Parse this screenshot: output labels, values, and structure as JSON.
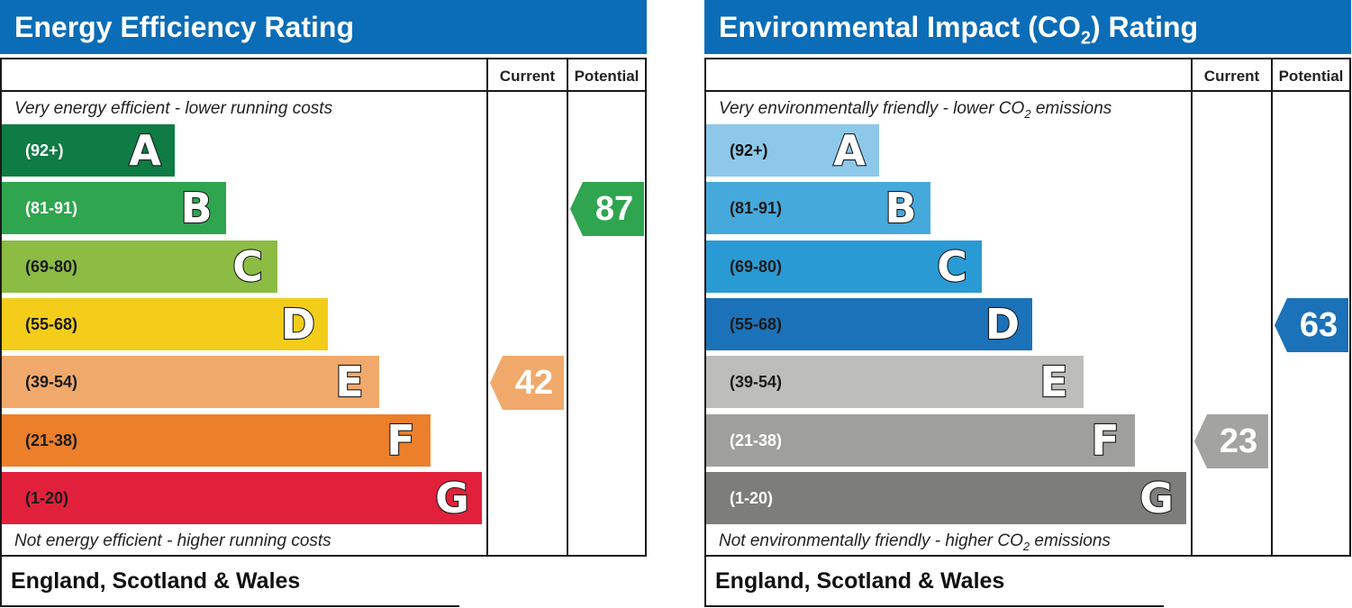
{
  "chart_data": [
    {
      "type": "bar",
      "title": "Energy Efficiency Rating",
      "columns": [
        "Current",
        "Potential"
      ],
      "top_caption": "Very energy efficient - lower running costs",
      "bottom_caption": "Not energy efficient - higher running costs",
      "footer": "England, Scotland & Wales",
      "bands": [
        {
          "letter": "A",
          "range": "(92+)",
          "color": "#0f7b45",
          "text_color": "#ffffff"
        },
        {
          "letter": "B",
          "range": "(81-91)",
          "color": "#2fa54f",
          "text_color": "#ffffff"
        },
        {
          "letter": "C",
          "range": "(69-80)",
          "color": "#8cbc44",
          "text_color": "#1a1a1a"
        },
        {
          "letter": "D",
          "range": "(55-68)",
          "color": "#f3cd1a",
          "text_color": "#1a1a1a"
        },
        {
          "letter": "E",
          "range": "(39-54)",
          "color": "#f1a96b",
          "text_color": "#1a1a1a"
        },
        {
          "letter": "F",
          "range": "(21-38)",
          "color": "#ec7f2a",
          "text_color": "#1a1a1a"
        },
        {
          "letter": "G",
          "range": "(1-20)",
          "color": "#e1213b",
          "text_color": "#1a1a1a"
        }
      ],
      "current": {
        "value": 42,
        "band": "E",
        "color": "#f1a96b"
      },
      "potential": {
        "value": 87,
        "band": "B",
        "color": "#2fa54f"
      }
    },
    {
      "type": "bar",
      "title_parts": {
        "before": "Environmental Impact (CO",
        "sub": "2",
        "after": ") Rating"
      },
      "columns": [
        "Current",
        "Potential"
      ],
      "top_caption_parts": {
        "before": "Very environmentally friendly - lower CO",
        "sub": "2",
        "after": " emissions"
      },
      "bottom_caption_parts": {
        "before": "Not environmentally friendly - higher CO",
        "sub": "2",
        "after": " emissions"
      },
      "footer": "England, Scotland & Wales",
      "bands": [
        {
          "letter": "A",
          "range": "(92+)",
          "color": "#8dc8ea",
          "text_color": "#111111"
        },
        {
          "letter": "B",
          "range": "(81-91)",
          "color": "#45a9dc",
          "text_color": "#1a1a1a"
        },
        {
          "letter": "C",
          "range": "(69-80)",
          "color": "#2a9ad4",
          "text_color": "#1a1a1a"
        },
        {
          "letter": "D",
          "range": "(55-68)",
          "color": "#1b72b9",
          "text_color": "#1a1a1a"
        },
        {
          "letter": "E",
          "range": "(39-54)",
          "color": "#bdbdbb",
          "text_color": "#1a1a1a"
        },
        {
          "letter": "F",
          "range": "(21-38)",
          "color": "#9f9f9d",
          "text_color": "#ffffff"
        },
        {
          "letter": "G",
          "range": "(1-20)",
          "color": "#7d7d7b",
          "text_color": "#ffffff"
        }
      ],
      "current": {
        "value": 23,
        "band": "F",
        "color": "#a3a3a1"
      },
      "potential": {
        "value": 63,
        "band": "D",
        "color": "#1b72b9"
      }
    }
  ]
}
